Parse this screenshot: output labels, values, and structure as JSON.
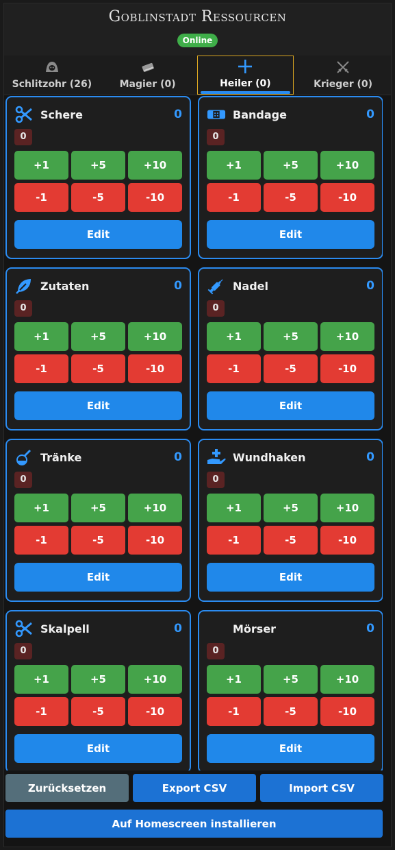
{
  "app": {
    "title": "Goblinstadt Ressourcen",
    "status": "Online"
  },
  "colors": {
    "accent": "#2b8bf0",
    "plus": "#45a34a",
    "minus": "#e33b33",
    "active_tab_border": "#d9a521",
    "status": "#3fae49"
  },
  "tabs": [
    {
      "label": "Schlitzohr (26)",
      "icon": "hood-icon"
    },
    {
      "label": "Magier (0)",
      "icon": "book-icon"
    },
    {
      "label": "Heiler (0)",
      "icon": "cross-icon",
      "active": true
    },
    {
      "label": "Krieger (0)",
      "icon": "crossed-swords-icon"
    }
  ],
  "buttons": {
    "p1": "+1",
    "p5": "+5",
    "p10": "+10",
    "m1": "-1",
    "m5": "-5",
    "m10": "-10",
    "edit": "Edit"
  },
  "items": [
    {
      "name": "Schere",
      "total": "0",
      "count": "0",
      "icon": "scissors-icon"
    },
    {
      "name": "Bandage",
      "total": "0",
      "count": "0",
      "icon": "bandage-icon"
    },
    {
      "name": "Zutaten",
      "total": "0",
      "count": "0",
      "icon": "leaf-icon"
    },
    {
      "name": "Nadel",
      "total": "0",
      "count": "0",
      "icon": "syringe-icon"
    },
    {
      "name": "Tränke",
      "total": "0",
      "count": "0",
      "icon": "flask-icon"
    },
    {
      "name": "Wundhaken",
      "total": "0",
      "count": "0",
      "icon": "hand-medical-icon"
    },
    {
      "name": "Skalpell",
      "total": "0",
      "count": "0",
      "icon": "scissors-icon"
    },
    {
      "name": "Mörser",
      "total": "0",
      "count": "0",
      "icon": ""
    }
  ],
  "footer": {
    "reset": "Zurücksetzen",
    "export": "Export CSV",
    "import": "Import CSV",
    "install": "Auf Homescreen installieren"
  }
}
